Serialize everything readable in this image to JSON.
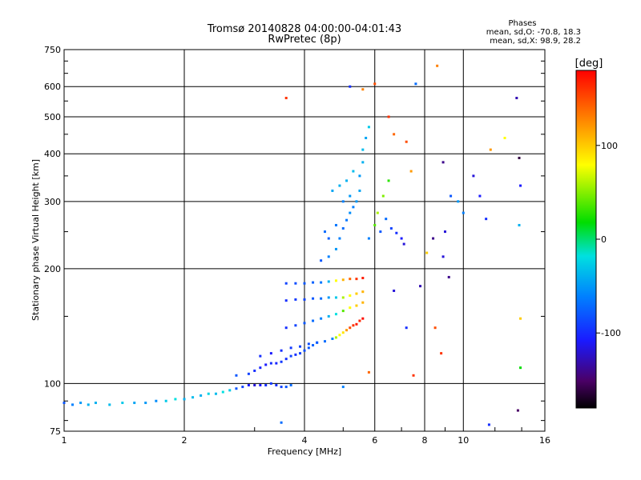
{
  "chart_data": {
    "type": "scatter",
    "title": "Tromsø 20140828 04:00:00-04:01:43",
    "subtitle": "RwPretec (8p)",
    "xlabel": "Frequency [MHz]",
    "ylabel": "Stationary phase Virtual Height [km]",
    "x_scale": "log",
    "y_scale": "log",
    "xlim": [
      1,
      16
    ],
    "ylim": [
      75,
      750
    ],
    "x_ticks": [
      1,
      2,
      4,
      6,
      8,
      10,
      16
    ],
    "x_tick_labels": [
      "1",
      "2",
      "4",
      "6",
      "8",
      "10",
      "16"
    ],
    "y_ticks": [
      75,
      100,
      200,
      300,
      400,
      500,
      600,
      750
    ],
    "y_tick_labels": [
      "75",
      "100",
      "200",
      "300",
      "400",
      "500",
      "600",
      "750"
    ],
    "grid": true,
    "stats": {
      "heading": "Phases",
      "line1": "mean, sd,O: -70.8, 18.3",
      "line2": "mean, sd,X:  98.9, 28.2"
    },
    "colorbar": {
      "label": "[deg]",
      "min": -180,
      "max": 180,
      "ticks": [
        100,
        0,
        -100
      ],
      "tick_labels": [
        "100",
        "0",
        "-100"
      ]
    },
    "series": [
      {
        "points": [
          [
            1.0,
            89,
            -80
          ],
          [
            1.05,
            88,
            -60
          ],
          [
            1.1,
            89,
            -50
          ],
          [
            1.15,
            88,
            -40
          ],
          [
            1.2,
            89,
            -40
          ],
          [
            1.3,
            88,
            -35
          ],
          [
            1.4,
            89,
            -30
          ],
          [
            1.5,
            89,
            -45
          ],
          [
            1.6,
            89,
            -50
          ],
          [
            1.7,
            90,
            -55
          ],
          [
            1.8,
            90,
            -30
          ],
          [
            1.9,
            91,
            -20
          ],
          [
            2.0,
            91,
            -40
          ],
          [
            2.1,
            92,
            -35
          ],
          [
            2.2,
            93,
            -40
          ],
          [
            2.3,
            94,
            -25
          ],
          [
            2.4,
            94,
            -35
          ],
          [
            2.5,
            95,
            -20
          ],
          [
            2.6,
            96,
            -30
          ],
          [
            2.7,
            97,
            -80
          ],
          [
            2.8,
            98,
            -90
          ],
          [
            2.9,
            99,
            -110
          ],
          [
            3.0,
            99,
            -120
          ],
          [
            3.1,
            99,
            -110
          ],
          [
            3.2,
            99,
            -100
          ],
          [
            3.3,
            100,
            -95
          ],
          [
            3.4,
            99,
            -100
          ],
          [
            3.5,
            98,
            -90
          ],
          [
            3.6,
            98,
            -80
          ],
          [
            3.7,
            99,
            -70
          ]
        ]
      },
      {
        "points": [
          [
            2.7,
            105,
            -80
          ],
          [
            2.9,
            106,
            -90
          ],
          [
            3.0,
            108,
            -100
          ],
          [
            3.1,
            110,
            -105
          ],
          [
            3.2,
            112,
            -110
          ],
          [
            3.3,
            113,
            -100
          ],
          [
            3.4,
            113,
            -105
          ],
          [
            3.5,
            114,
            -95
          ],
          [
            3.6,
            116,
            -100
          ],
          [
            3.7,
            118,
            -90
          ],
          [
            3.8,
            119,
            -100
          ],
          [
            3.9,
            120,
            -90
          ],
          [
            4.0,
            122,
            -85
          ],
          [
            4.1,
            124,
            -80
          ],
          [
            4.2,
            126,
            -75
          ],
          [
            4.3,
            128,
            -60
          ]
        ]
      },
      {
        "points": [
          [
            3.1,
            118,
            -100
          ],
          [
            3.3,
            120,
            -110
          ],
          [
            3.5,
            122,
            -100
          ],
          [
            3.7,
            124,
            -95
          ],
          [
            3.9,
            125,
            -90
          ],
          [
            4.1,
            127,
            -85
          ],
          [
            4.3,
            128,
            -80
          ],
          [
            4.5,
            129,
            -70
          ],
          [
            4.7,
            131,
            -60
          ],
          [
            4.8,
            132,
            60
          ],
          [
            4.9,
            134,
            80
          ],
          [
            5.0,
            136,
            90
          ],
          [
            5.1,
            138,
            120
          ],
          [
            5.2,
            140,
            150
          ],
          [
            5.3,
            142,
            160
          ],
          [
            5.4,
            143,
            170
          ],
          [
            5.5,
            146,
            165
          ],
          [
            5.6,
            148,
            175
          ]
        ]
      },
      {
        "points": [
          [
            3.6,
            140,
            -100
          ],
          [
            3.8,
            142,
            -90
          ],
          [
            4.0,
            144,
            -80
          ],
          [
            4.2,
            146,
            -70
          ],
          [
            4.4,
            148,
            -60
          ],
          [
            4.6,
            150,
            -40
          ],
          [
            4.8,
            152,
            -20
          ],
          [
            5.0,
            155,
            40
          ],
          [
            5.2,
            158,
            80
          ],
          [
            5.4,
            160,
            100
          ],
          [
            5.6,
            163,
            110
          ]
        ]
      },
      {
        "points": [
          [
            3.6,
            165,
            -100
          ],
          [
            3.8,
            166,
            -95
          ],
          [
            4.0,
            166,
            -90
          ],
          [
            4.2,
            167,
            -80
          ],
          [
            4.4,
            167,
            -70
          ],
          [
            4.6,
            168,
            -50
          ],
          [
            4.8,
            168,
            -30
          ],
          [
            5.0,
            168,
            60
          ],
          [
            5.2,
            170,
            80
          ],
          [
            5.4,
            172,
            100
          ],
          [
            5.6,
            174,
            110
          ]
        ]
      },
      {
        "points": [
          [
            3.6,
            183,
            -90
          ],
          [
            3.8,
            183,
            -85
          ],
          [
            4.0,
            183,
            -80
          ],
          [
            4.2,
            184,
            -75
          ],
          [
            4.4,
            184,
            -65
          ],
          [
            4.6,
            185,
            -40
          ],
          [
            4.8,
            186,
            80
          ],
          [
            5.0,
            187,
            110
          ],
          [
            5.2,
            188,
            140
          ],
          [
            5.4,
            188,
            160
          ],
          [
            5.6,
            189,
            170
          ]
        ]
      },
      {
        "points": [
          [
            4.4,
            210,
            -80
          ],
          [
            4.6,
            215,
            -60
          ],
          [
            4.8,
            225,
            -50
          ],
          [
            4.9,
            240,
            -60
          ],
          [
            5.0,
            255,
            -70
          ],
          [
            5.1,
            268,
            -65
          ],
          [
            5.2,
            280,
            -55
          ],
          [
            5.3,
            290,
            -60
          ],
          [
            5.4,
            300,
            -50
          ],
          [
            5.5,
            320,
            -45
          ],
          [
            5.5,
            350,
            -50
          ],
          [
            5.6,
            380,
            -40
          ],
          [
            5.6,
            410,
            -35
          ],
          [
            5.7,
            440,
            -45
          ],
          [
            5.8,
            470,
            -30
          ],
          [
            4.5,
            250,
            -70
          ],
          [
            4.6,
            240,
            -75
          ],
          [
            4.8,
            260,
            -65
          ],
          [
            5.0,
            300,
            -60
          ],
          [
            5.2,
            310,
            -50
          ],
          [
            4.7,
            320,
            -45
          ],
          [
            4.9,
            330,
            -40
          ],
          [
            5.1,
            340,
            -40
          ],
          [
            5.3,
            360,
            -35
          ]
        ]
      },
      {
        "points": [
          [
            5.8,
            240,
            -60
          ],
          [
            6.0,
            260,
            40
          ],
          [
            6.1,
            280,
            60
          ],
          [
            6.3,
            310,
            50
          ],
          [
            6.5,
            340,
            30
          ],
          [
            6.6,
            255,
            -90
          ],
          [
            6.8,
            248,
            -100
          ],
          [
            7.0,
            240,
            -110
          ],
          [
            7.1,
            232,
            -120
          ],
          [
            6.2,
            250,
            -80
          ],
          [
            6.4,
            270,
            -70
          ]
        ]
      },
      {
        "points": [
          [
            3.6,
            560,
            160
          ],
          [
            5.2,
            600,
            -100
          ],
          [
            5.6,
            590,
            130
          ],
          [
            6.0,
            610,
            150
          ],
          [
            6.5,
            500,
            160
          ],
          [
            6.7,
            450,
            140
          ],
          [
            7.2,
            430,
            150
          ],
          [
            7.4,
            360,
            120
          ],
          [
            7.6,
            610,
            -70
          ],
          [
            8.6,
            680,
            130
          ],
          [
            8.9,
            380,
            -140
          ],
          [
            9.3,
            310,
            -80
          ],
          [
            9.7,
            300,
            -50
          ],
          [
            10.0,
            280,
            -60
          ],
          [
            10.6,
            350,
            -120
          ],
          [
            11.0,
            310,
            -110
          ],
          [
            11.4,
            270,
            -100
          ],
          [
            11.7,
            410,
            120
          ],
          [
            12.7,
            440,
            80
          ],
          [
            13.6,
            560,
            -130
          ],
          [
            13.8,
            390,
            -160
          ],
          [
            13.9,
            330,
            -110
          ],
          [
            13.8,
            260,
            -40
          ],
          [
            8.1,
            220,
            100
          ],
          [
            8.4,
            240,
            -140
          ],
          [
            8.9,
            215,
            -120
          ],
          [
            9.0,
            250,
            -120
          ],
          [
            7.8,
            180,
            -130
          ],
          [
            8.5,
            140,
            150
          ],
          [
            8.8,
            120,
            160
          ],
          [
            9.2,
            190,
            -140
          ],
          [
            7.5,
            105,
            160
          ],
          [
            6.7,
            175,
            -120
          ],
          [
            7.2,
            140,
            -100
          ],
          [
            5.8,
            107,
            140
          ],
          [
            13.9,
            110,
            20
          ],
          [
            13.9,
            148,
            100
          ],
          [
            13.7,
            85,
            -150
          ],
          [
            11.6,
            78,
            -100
          ],
          [
            3.5,
            79,
            -70
          ],
          [
            5.0,
            98,
            -60
          ]
        ]
      }
    ]
  }
}
